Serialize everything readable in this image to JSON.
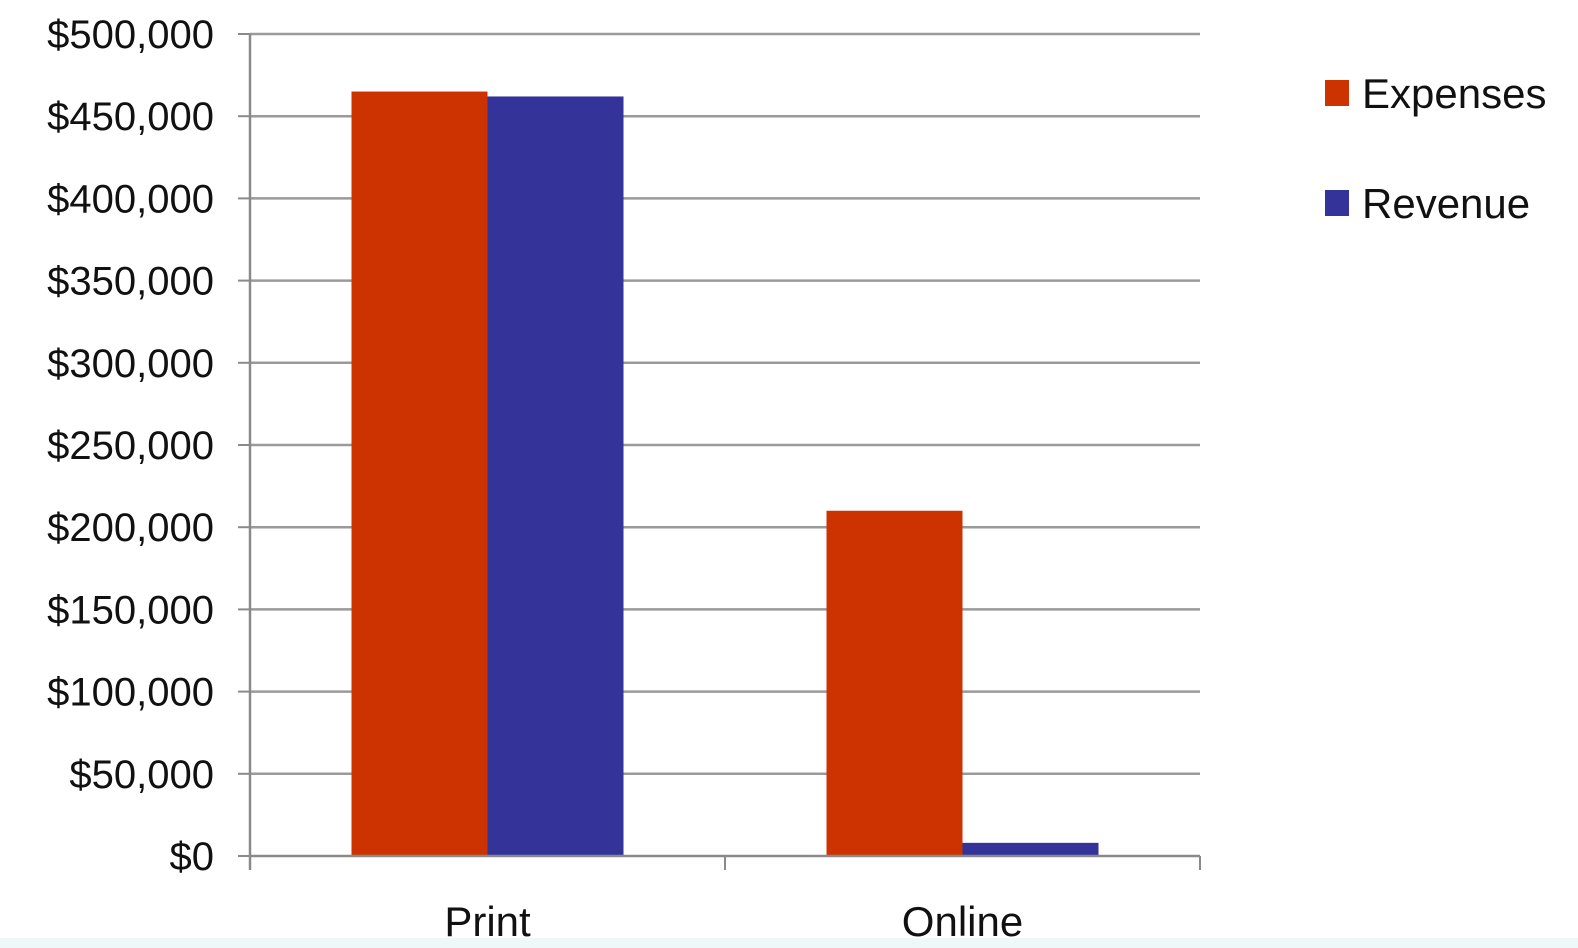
{
  "chart_data": {
    "type": "bar",
    "title": "",
    "xlabel": "",
    "ylabel": "",
    "categories": [
      "Print",
      "Online"
    ],
    "series": [
      {
        "name": "Expenses",
        "color": "#cc3300",
        "values": [
          465000,
          210000
        ]
      },
      {
        "name": "Revenue",
        "color": "#333399",
        "values": [
          462000,
          8000
        ]
      }
    ],
    "ylim": [
      0,
      500000
    ],
    "yticks": [
      0,
      50000,
      100000,
      150000,
      200000,
      250000,
      300000,
      350000,
      400000,
      450000,
      500000
    ],
    "ytick_labels": [
      "$0",
      "$50,000",
      "$100,000",
      "$150,000",
      "$200,000",
      "$250,000",
      "$300,000",
      "$350,000",
      "$400,000",
      "$450,000",
      "$500,000"
    ],
    "grid": true,
    "legend_position": "right"
  }
}
